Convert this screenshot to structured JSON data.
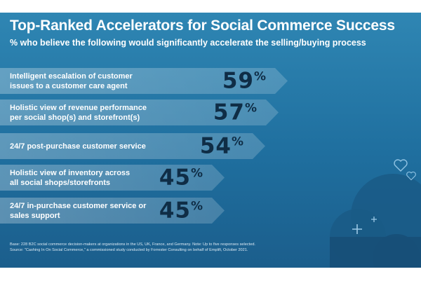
{
  "chart_data": {
    "type": "bar",
    "title": "Top-Ranked Accelerators for Social Commerce Success",
    "subtitle": "% who believe the following would significantly accelerate the selling/buying process",
    "categories": [
      "Intelligent escalation of customer issues to a customer care agent",
      "Holistic view of revenue performance per social shop(s) and storefront(s)",
      "24/7 post-purchase customer service",
      "Holistic view of inventory across all social shops/storefronts",
      "24/7 in-purchase customer service or sales support"
    ],
    "values": [
      59,
      57,
      54,
      45,
      45
    ],
    "value_suffix": "%",
    "orientation": "horizontal",
    "xlim": [
      0,
      100
    ]
  },
  "bars": [
    {
      "line1": "Intelligent escalation of customer",
      "line2": "issues to a customer care agent",
      "value": "59",
      "pct": "%"
    },
    {
      "line1": "Holistic view of revenue performance",
      "line2": "per social shop(s) and storefront(s)",
      "value": "57",
      "pct": "%"
    },
    {
      "line1": "24/7 post-purchase customer service",
      "line2": "",
      "value": "54",
      "pct": "%"
    },
    {
      "line1": "Holistic view of inventory across",
      "line2": "all social shops/storefronts",
      "value": "45",
      "pct": "%"
    },
    {
      "line1": "24/7 in-purchase customer service or",
      "line2": "sales support",
      "value": "45",
      "pct": "%"
    }
  ],
  "footnote": {
    "line1": "Base: 228 B2C social commerce decision-makers at organizations in the US, UK, France, and Germany. Note: Up to five responses selected.",
    "line2": "Source: \"Cashing In On Social Commerce,\" a commissioned study conducted by Forrester Consulting on behalf of Emplifi, October 2021."
  },
  "colors": {
    "background": "#1f6f9f",
    "value_text": "#0f2d46",
    "label_text": "#ffffff"
  },
  "decorations": [
    "heart-icon",
    "heart-icon",
    "plus-icon",
    "plus-icon",
    "cloud-shape"
  ]
}
